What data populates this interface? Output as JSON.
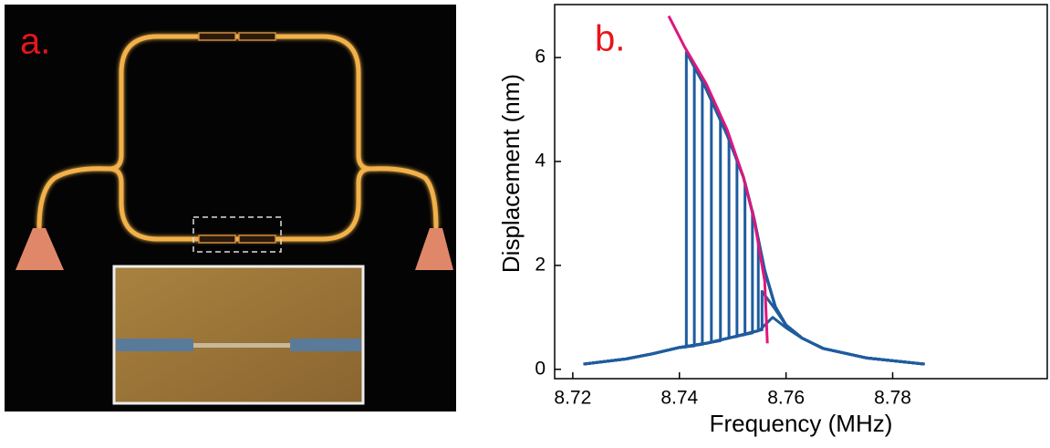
{
  "panel_a": {
    "label": "a."
  },
  "chart_data": {
    "type": "line",
    "annotation": "b.",
    "xlabel": "Frequency (MHz)",
    "ylabel": "Displacement (nm)",
    "xlim": [
      8.7166,
      8.809
    ],
    "ylim": [
      -0.18,
      7.02
    ],
    "xticks": [
      8.72,
      8.74,
      8.76,
      8.78
    ],
    "yticks": [
      0,
      2,
      4,
      6
    ],
    "series": [
      {
        "color": "#1f5c9e",
        "x": [
          8.722,
          8.73,
          8.735,
          8.74,
          8.7413,
          8.7413,
          8.745,
          8.749,
          8.752,
          8.754,
          8.756,
          8.758,
          8.76,
          8.763,
          8.767,
          8.775,
          8.786
        ],
        "values": [
          0.1,
          0.2,
          0.3,
          0.42,
          0.43,
          6.1,
          5.4,
          4.5,
          3.7,
          2.9,
          1.9,
          1.2,
          0.85,
          0.6,
          0.4,
          0.22,
          0.1
        ]
      },
      {
        "color": "#1f5c9e",
        "x": [
          8.722,
          8.73,
          8.735,
          8.74,
          8.7428,
          8.7428,
          8.745,
          8.749,
          8.752,
          8.754,
          8.756,
          8.758,
          8.76,
          8.763,
          8.767,
          8.775,
          8.786
        ],
        "values": [
          0.1,
          0.2,
          0.3,
          0.42,
          0.45,
          5.85,
          5.4,
          4.5,
          3.7,
          2.9,
          1.9,
          1.2,
          0.85,
          0.6,
          0.4,
          0.22,
          0.1
        ]
      },
      {
        "color": "#1f5c9e",
        "x": [
          8.722,
          8.73,
          8.735,
          8.74,
          8.7443,
          8.7443,
          8.745,
          8.749,
          8.752,
          8.754,
          8.756,
          8.758,
          8.76,
          8.763,
          8.767,
          8.775,
          8.786
        ],
        "values": [
          0.1,
          0.2,
          0.3,
          0.42,
          0.48,
          5.6,
          5.4,
          4.5,
          3.7,
          2.9,
          1.9,
          1.2,
          0.85,
          0.6,
          0.4,
          0.22,
          0.1
        ]
      },
      {
        "color": "#1f5c9e",
        "x": [
          8.722,
          8.73,
          8.735,
          8.74,
          8.745,
          8.746,
          8.746,
          8.749,
          8.752,
          8.754,
          8.756,
          8.758,
          8.76,
          8.763,
          8.767,
          8.775,
          8.786
        ],
        "values": [
          0.1,
          0.2,
          0.3,
          0.42,
          0.5,
          0.52,
          5.2,
          4.5,
          3.7,
          2.9,
          1.9,
          1.2,
          0.85,
          0.6,
          0.4,
          0.22,
          0.1
        ]
      },
      {
        "color": "#1f5c9e",
        "x": [
          8.722,
          8.73,
          8.735,
          8.74,
          8.745,
          8.7477,
          8.7477,
          8.749,
          8.752,
          8.754,
          8.756,
          8.758,
          8.76,
          8.763,
          8.767,
          8.775,
          8.786
        ],
        "values": [
          0.1,
          0.2,
          0.3,
          0.42,
          0.5,
          0.55,
          4.85,
          4.5,
          3.7,
          2.9,
          1.9,
          1.2,
          0.85,
          0.6,
          0.4,
          0.22,
          0.1
        ]
      },
      {
        "color": "#1f5c9e",
        "x": [
          8.722,
          8.73,
          8.735,
          8.74,
          8.745,
          8.7493,
          8.7493,
          8.752,
          8.754,
          8.756,
          8.758,
          8.76,
          8.763,
          8.767,
          8.775,
          8.786
        ],
        "values": [
          0.1,
          0.2,
          0.3,
          0.42,
          0.5,
          0.6,
          4.45,
          3.7,
          2.9,
          1.9,
          1.2,
          0.85,
          0.6,
          0.4,
          0.22,
          0.1
        ]
      },
      {
        "color": "#1f5c9e",
        "x": [
          8.722,
          8.73,
          8.735,
          8.74,
          8.745,
          8.75,
          8.7508,
          8.7508,
          8.752,
          8.754,
          8.756,
          8.758,
          8.76,
          8.763,
          8.767,
          8.775,
          8.786
        ],
        "values": [
          0.1,
          0.2,
          0.3,
          0.42,
          0.5,
          0.62,
          0.63,
          4.05,
          3.7,
          2.9,
          1.9,
          1.2,
          0.85,
          0.6,
          0.4,
          0.22,
          0.1
        ]
      },
      {
        "color": "#1f5c9e",
        "x": [
          8.722,
          8.73,
          8.735,
          8.74,
          8.745,
          8.75,
          8.7523,
          8.7523,
          8.754,
          8.756,
          8.758,
          8.76,
          8.763,
          8.767,
          8.775,
          8.786
        ],
        "values": [
          0.1,
          0.2,
          0.3,
          0.42,
          0.5,
          0.62,
          0.67,
          3.6,
          2.9,
          1.9,
          1.2,
          0.85,
          0.6,
          0.4,
          0.22,
          0.1
        ]
      },
      {
        "color": "#1f5c9e",
        "x": [
          8.722,
          8.73,
          8.735,
          8.74,
          8.745,
          8.75,
          8.7537,
          8.7537,
          8.756,
          8.758,
          8.76,
          8.763,
          8.767,
          8.775,
          8.786
        ],
        "values": [
          0.1,
          0.2,
          0.3,
          0.42,
          0.5,
          0.62,
          0.7,
          3.05,
          1.9,
          1.2,
          0.85,
          0.6,
          0.4,
          0.22,
          0.1
        ]
      },
      {
        "color": "#1f5c9e",
        "x": [
          8.722,
          8.73,
          8.735,
          8.74,
          8.745,
          8.75,
          8.7548,
          8.7548,
          8.756,
          8.758,
          8.76,
          8.763,
          8.767,
          8.775,
          8.786
        ],
        "values": [
          0.1,
          0.2,
          0.3,
          0.42,
          0.5,
          0.62,
          0.74,
          2.5,
          1.9,
          1.2,
          0.85,
          0.6,
          0.4,
          0.22,
          0.1
        ]
      },
      {
        "color": "#1f5c9e",
        "x": [
          8.722,
          8.73,
          8.735,
          8.74,
          8.745,
          8.75,
          8.755,
          8.7555,
          8.7555,
          8.758,
          8.76,
          8.763,
          8.767,
          8.775,
          8.786
        ],
        "values": [
          0.1,
          0.2,
          0.3,
          0.42,
          0.5,
          0.62,
          0.75,
          0.76,
          1.5,
          1.15,
          0.85,
          0.6,
          0.4,
          0.22,
          0.1
        ]
      },
      {
        "color": "#1f5c9e",
        "x": [
          8.722,
          8.73,
          8.735,
          8.74,
          8.745,
          8.75,
          8.755,
          8.7575,
          8.76,
          8.763,
          8.767,
          8.775,
          8.786
        ],
        "values": [
          0.1,
          0.2,
          0.3,
          0.42,
          0.5,
          0.62,
          0.75,
          1.0,
          0.8,
          0.6,
          0.4,
          0.22,
          0.1
        ]
      },
      {
        "color": "#e0157f",
        "x": [
          8.738,
          8.741,
          8.745,
          8.749,
          8.752,
          8.754,
          8.756,
          8.7565
        ],
        "values": [
          6.8,
          6.2,
          5.5,
          4.6,
          3.7,
          2.9,
          1.7,
          0.5
        ]
      }
    ]
  }
}
